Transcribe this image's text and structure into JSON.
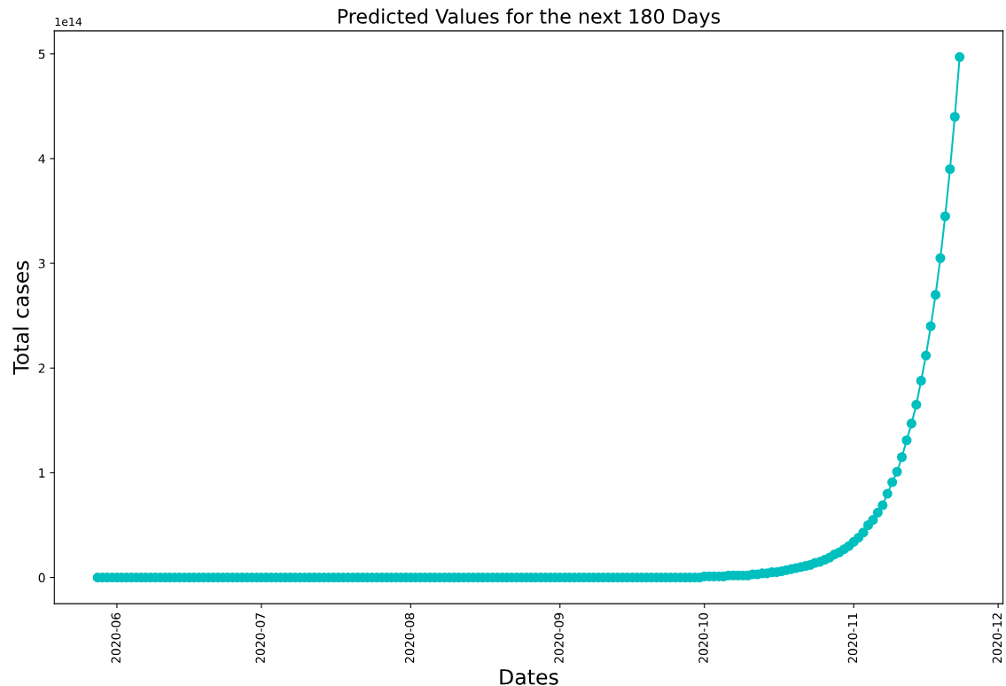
{
  "chart_data": {
    "type": "line",
    "title": "Predicted Values for the next 180 Days",
    "xlabel": "Dates",
    "ylabel": "Total cases",
    "annotations": [
      "1e14"
    ],
    "x": [
      "2020-05-28",
      "2020-05-29",
      "2020-05-30",
      "2020-05-31",
      "2020-06-01",
      "2020-06-02",
      "2020-06-03",
      "2020-06-04",
      "2020-06-05",
      "2020-06-06",
      "2020-06-07",
      "2020-06-08",
      "2020-06-09",
      "2020-06-10",
      "2020-06-11",
      "2020-06-12",
      "2020-06-13",
      "2020-06-14",
      "2020-06-15",
      "2020-06-16",
      "2020-06-17",
      "2020-06-18",
      "2020-06-19",
      "2020-06-20",
      "2020-06-21",
      "2020-06-22",
      "2020-06-23",
      "2020-06-24",
      "2020-06-25",
      "2020-06-26",
      "2020-06-27",
      "2020-06-28",
      "2020-06-29",
      "2020-06-30",
      "2020-07-01",
      "2020-07-02",
      "2020-07-03",
      "2020-07-04",
      "2020-07-05",
      "2020-07-06",
      "2020-07-07",
      "2020-07-08",
      "2020-07-09",
      "2020-07-10",
      "2020-07-11",
      "2020-07-12",
      "2020-07-13",
      "2020-07-14",
      "2020-07-15",
      "2020-07-16",
      "2020-07-17",
      "2020-07-18",
      "2020-07-19",
      "2020-07-20",
      "2020-07-21",
      "2020-07-22",
      "2020-07-23",
      "2020-07-24",
      "2020-07-25",
      "2020-07-26",
      "2020-07-27",
      "2020-07-28",
      "2020-07-29",
      "2020-07-30",
      "2020-07-31",
      "2020-08-01",
      "2020-08-02",
      "2020-08-03",
      "2020-08-04",
      "2020-08-05",
      "2020-08-06",
      "2020-08-07",
      "2020-08-08",
      "2020-08-09",
      "2020-08-10",
      "2020-08-11",
      "2020-08-12",
      "2020-08-13",
      "2020-08-14",
      "2020-08-15",
      "2020-08-16",
      "2020-08-17",
      "2020-08-18",
      "2020-08-19",
      "2020-08-20",
      "2020-08-21",
      "2020-08-22",
      "2020-08-23",
      "2020-08-24",
      "2020-08-25",
      "2020-08-26",
      "2020-08-27",
      "2020-08-28",
      "2020-08-29",
      "2020-08-30",
      "2020-08-31",
      "2020-09-01",
      "2020-09-02",
      "2020-09-03",
      "2020-09-04",
      "2020-09-05",
      "2020-09-06",
      "2020-09-07",
      "2020-09-08",
      "2020-09-09",
      "2020-09-10",
      "2020-09-11",
      "2020-09-12",
      "2020-09-13",
      "2020-09-14",
      "2020-09-15",
      "2020-09-16",
      "2020-09-17",
      "2020-09-18",
      "2020-09-19",
      "2020-09-20",
      "2020-09-21",
      "2020-09-22",
      "2020-09-23",
      "2020-09-24",
      "2020-09-25",
      "2020-09-26",
      "2020-09-27",
      "2020-09-28",
      "2020-09-29",
      "2020-09-30",
      "2020-10-01",
      "2020-10-02",
      "2020-10-03",
      "2020-10-04",
      "2020-10-05",
      "2020-10-06",
      "2020-10-07",
      "2020-10-08",
      "2020-10-09",
      "2020-10-10",
      "2020-10-11",
      "2020-10-12",
      "2020-10-13",
      "2020-10-14",
      "2020-10-15",
      "2020-10-16",
      "2020-10-17",
      "2020-10-18",
      "2020-10-19",
      "2020-10-20",
      "2020-10-21",
      "2020-10-22",
      "2020-10-23",
      "2020-10-24",
      "2020-10-25",
      "2020-10-26",
      "2020-10-27",
      "2020-10-28",
      "2020-10-29",
      "2020-10-30",
      "2020-10-31",
      "2020-11-01",
      "2020-11-02",
      "2020-11-03",
      "2020-11-04",
      "2020-11-05",
      "2020-11-06",
      "2020-11-07",
      "2020-11-08",
      "2020-11-09",
      "2020-11-10",
      "2020-11-11",
      "2020-11-12",
      "2020-11-13",
      "2020-11-14",
      "2020-11-15",
      "2020-11-16",
      "2020-11-17",
      "2020-11-18",
      "2020-11-19",
      "2020-11-20",
      "2020-11-21",
      "2020-11-22",
      "2020-11-23"
    ],
    "series": [
      {
        "color": "#00bfbf",
        "values": [
          0,
          0,
          0,
          0,
          0,
          0,
          0,
          0,
          0,
          0,
          0,
          0,
          0,
          0,
          0,
          0,
          0,
          0,
          0,
          0,
          0,
          0,
          0,
          0,
          0,
          0,
          0,
          0,
          0,
          0,
          0,
          0,
          0,
          0,
          0,
          0,
          0,
          0,
          0,
          0,
          0,
          0,
          0,
          0,
          0,
          0,
          0,
          0,
          0,
          0,
          0,
          0,
          0,
          0,
          0,
          0,
          0,
          0,
          0,
          0,
          0,
          0,
          0,
          0,
          0,
          0,
          0,
          0,
          0,
          0,
          0,
          0,
          0,
          0,
          0,
          0,
          0,
          0,
          0,
          0,
          0,
          0,
          0,
          0,
          0,
          0,
          0,
          0,
          0,
          0,
          0,
          0,
          0,
          0,
          0,
          0,
          0,
          0,
          0,
          0,
          0,
          0,
          0,
          0,
          0,
          0,
          0,
          0,
          0,
          0,
          0,
          0,
          0,
          0,
          0,
          0,
          0,
          0,
          0,
          0,
          0,
          0,
          0,
          0,
          0,
          0,
          0.01,
          0.01,
          0.01,
          0.01,
          0.01,
          0.02,
          0.02,
          0.02,
          0.02,
          0.02,
          0.03,
          0.03,
          0.04,
          0.04,
          0.05,
          0.05,
          0.06,
          0.07,
          0.08,
          0.09,
          0.1,
          0.11,
          0.12,
          0.14,
          0.15,
          0.17,
          0.19,
          0.22,
          0.24,
          0.27,
          0.3,
          0.34,
          0.38,
          0.43,
          0.5,
          0.55,
          0.62,
          0.69,
          0.8,
          0.91,
          1.01,
          1.15,
          1.31,
          1.47,
          1.65,
          1.88,
          2.12,
          2.4,
          2.7,
          3.05,
          3.45,
          3.9,
          4.4,
          4.97
        ]
      }
    ],
    "xlim": [
      "2020-05-19",
      "2020-12-02"
    ],
    "xticks": [
      {
        "value": "2020-06-01",
        "label": "2020-06"
      },
      {
        "value": "2020-07-01",
        "label": "2020-07"
      },
      {
        "value": "2020-08-01",
        "label": "2020-08"
      },
      {
        "value": "2020-09-01",
        "label": "2020-09"
      },
      {
        "value": "2020-10-01",
        "label": "2020-10"
      },
      {
        "value": "2020-11-01",
        "label": "2020-11"
      },
      {
        "value": "2020-12-01",
        "label": "2020-12"
      }
    ],
    "ylim": [
      -0.25,
      5.22
    ],
    "yticks": [
      0,
      1,
      2,
      3,
      4,
      5
    ],
    "marker": "circle",
    "line_style": "solid",
    "grid": false,
    "legend": false
  }
}
